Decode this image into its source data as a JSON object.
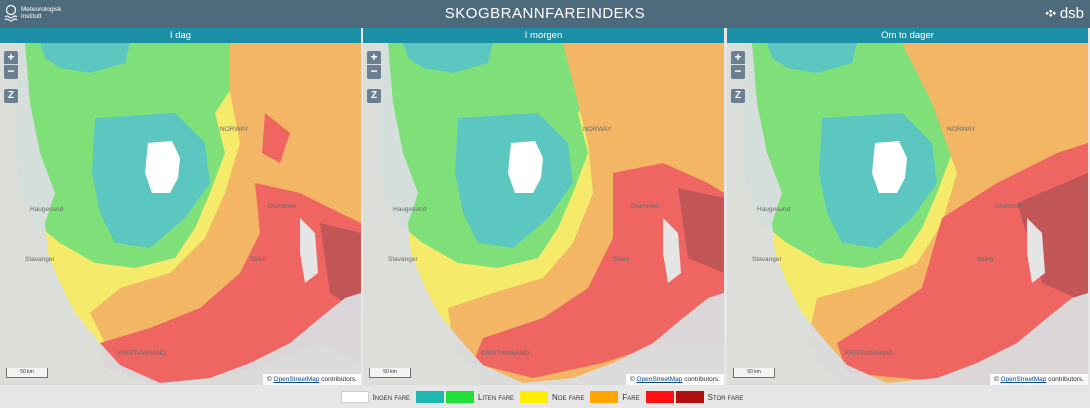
{
  "header": {
    "met_logo_line1": "Meteorologisk",
    "met_logo_line2": "institutt",
    "title": "SKOGBRANNFAREINDEKS",
    "dsb_logo": "dsb"
  },
  "panels": [
    {
      "label": "I dag"
    },
    {
      "label": "I morgen"
    },
    {
      "label": "Om to dager"
    }
  ],
  "map": {
    "zoom_in": "+",
    "zoom_out": "−",
    "zoom_reset": "Z",
    "scale_label": "50 km",
    "attribution_prefix": "©",
    "attribution_link": "OpenStreetMap",
    "attribution_suffix": "contributors.",
    "place_labels": {
      "norway": "NORWAY",
      "haugesund": "Haugesund",
      "stavanger": "Stavanger",
      "kristiansand": "KRISTIANSAND",
      "skien": "Skien",
      "drammen": "Drammen"
    }
  },
  "legend": {
    "items": [
      {
        "label": "Ingen fare",
        "colors": [
          "#ffffff"
        ]
      },
      {
        "label": "Liten fare",
        "colors": [
          "#1fb8b0",
          "#22e03a"
        ]
      },
      {
        "label": "Noe fare",
        "colors": [
          "#ffee00"
        ]
      },
      {
        "label": "Fare",
        "colors": [
          "#ffa500"
        ]
      },
      {
        "label": "Stor fare",
        "colors": [
          "#ff1111",
          "#b01010"
        ]
      }
    ]
  },
  "colors": {
    "header_bg": "#4e6b7d",
    "panel_header_bg": "#1a8fa5",
    "none": "#ffffff",
    "teal": "#5cc7c0",
    "green": "#7fe07a",
    "yellow": "#f5ea6a",
    "orange": "#f2b665",
    "red": "#ee6562",
    "darkred": "#c25656"
  }
}
